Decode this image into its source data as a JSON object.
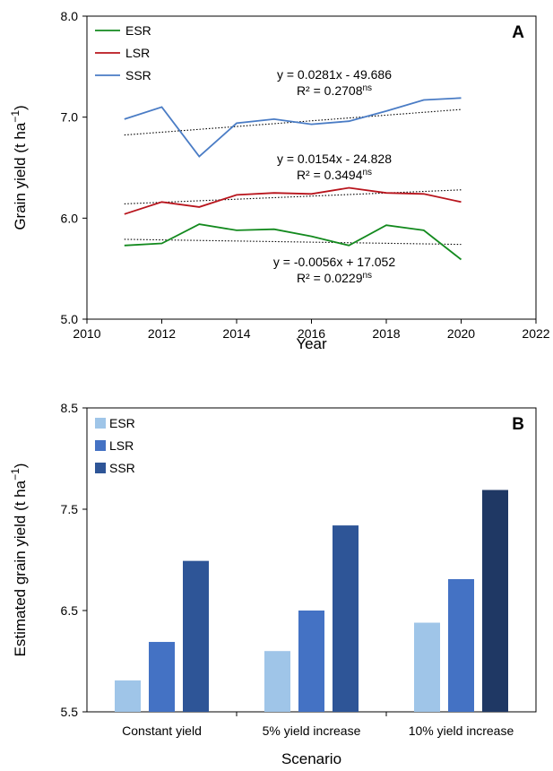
{
  "chart_data": [
    {
      "type": "line",
      "panel_label": "A",
      "xlabel": "Year",
      "ylabel": "Grain yield (t ha⁻¹)",
      "ylabel_main": "Grain yield (t ha",
      "ylabel_sup": "−1",
      "ylabel_close": ")",
      "xlim": [
        2010,
        2022
      ],
      "ylim": [
        5.0,
        8.0
      ],
      "xticks": [
        "2010",
        "2012",
        "2014",
        "2016",
        "2018",
        "2020",
        "2022"
      ],
      "yticks": [
        "5.0",
        "6.0",
        "7.0",
        "8.0"
      ],
      "grid": false,
      "legend_position": "top-left",
      "x": [
        2011,
        2012,
        2013,
        2014,
        2015,
        2016,
        2017,
        2018,
        2019,
        2020
      ],
      "series": [
        {
          "name": "ESR",
          "color": "#138a1e",
          "values": [
            5.73,
            5.75,
            5.94,
            5.88,
            5.89,
            5.82,
            5.73,
            5.93,
            5.88,
            5.59
          ],
          "trend": {
            "slope": -0.0056,
            "intercept": 17.052
          },
          "equation": "y = -0.0056x + 17.052",
          "r2": "R² = 0.0229",
          "sig": "ns"
        },
        {
          "name": "LSR",
          "color": "#b8141c",
          "values": [
            6.04,
            6.16,
            6.11,
            6.23,
            6.25,
            6.24,
            6.3,
            6.25,
            6.24,
            6.16
          ],
          "trend": {
            "slope": 0.0154,
            "intercept": -24.828
          },
          "equation": "y = 0.0154x - 24.828",
          "r2": "R² = 0.3494",
          "sig": "ns"
        },
        {
          "name": "SSR",
          "color": "#4a7cc5",
          "values": [
            6.98,
            7.1,
            6.61,
            6.94,
            6.98,
            6.93,
            6.96,
            7.06,
            7.17,
            7.19
          ],
          "trend": {
            "slope": 0.0281,
            "intercept": -49.686
          },
          "equation": "y = 0.0281x - 49.686",
          "r2": "R² = 0.2708",
          "sig": "ns"
        }
      ]
    },
    {
      "type": "bar",
      "panel_label": "B",
      "xlabel": "Scenario",
      "ylabel": "Estimated grain yield (t ha⁻¹)",
      "ylabel_main": "Estimated grain yield (t ha",
      "ylabel_sup": "−1",
      "ylabel_close": ")",
      "ylim": [
        5.5,
        8.5
      ],
      "yticks": [
        "5.5",
        "6.5",
        "7.5",
        "8.5"
      ],
      "grid": false,
      "legend_position": "top-left",
      "categories": [
        "Constant yield",
        "5% yield increase",
        "10% yield increase"
      ],
      "series": [
        {
          "name": "ESR",
          "color": "#9fc5e8",
          "values": [
            5.81,
            6.1,
            6.38
          ]
        },
        {
          "name": "LSR",
          "color": "#4472c4",
          "values": [
            6.19,
            6.5,
            6.81
          ]
        },
        {
          "name": "SSR",
          "color": "#2e5597",
          "values": [
            6.99,
            7.34,
            7.69
          ]
        }
      ],
      "bar_colors_override": {
        "2": {
          "2": "#1f3864"
        }
      }
    }
  ]
}
